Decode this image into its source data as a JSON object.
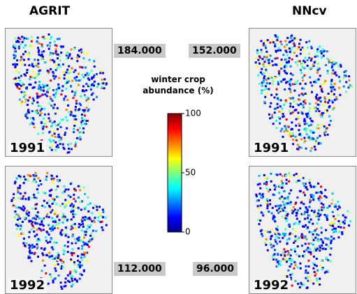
{
  "columns": [
    "AGRIT",
    "NNcv"
  ],
  "panels": [
    {
      "year": "1991",
      "total": "184.000"
    },
    {
      "year": "1991",
      "total": "152.000"
    },
    {
      "year": "1992",
      "total": "112.000"
    },
    {
      "year": "1992",
      "total": "96.000"
    }
  ],
  "colorbar": {
    "title": "winter crop abundance (%)",
    "lim": [
      0,
      100
    ],
    "ticks": [
      0,
      50,
      100
    ]
  }
}
